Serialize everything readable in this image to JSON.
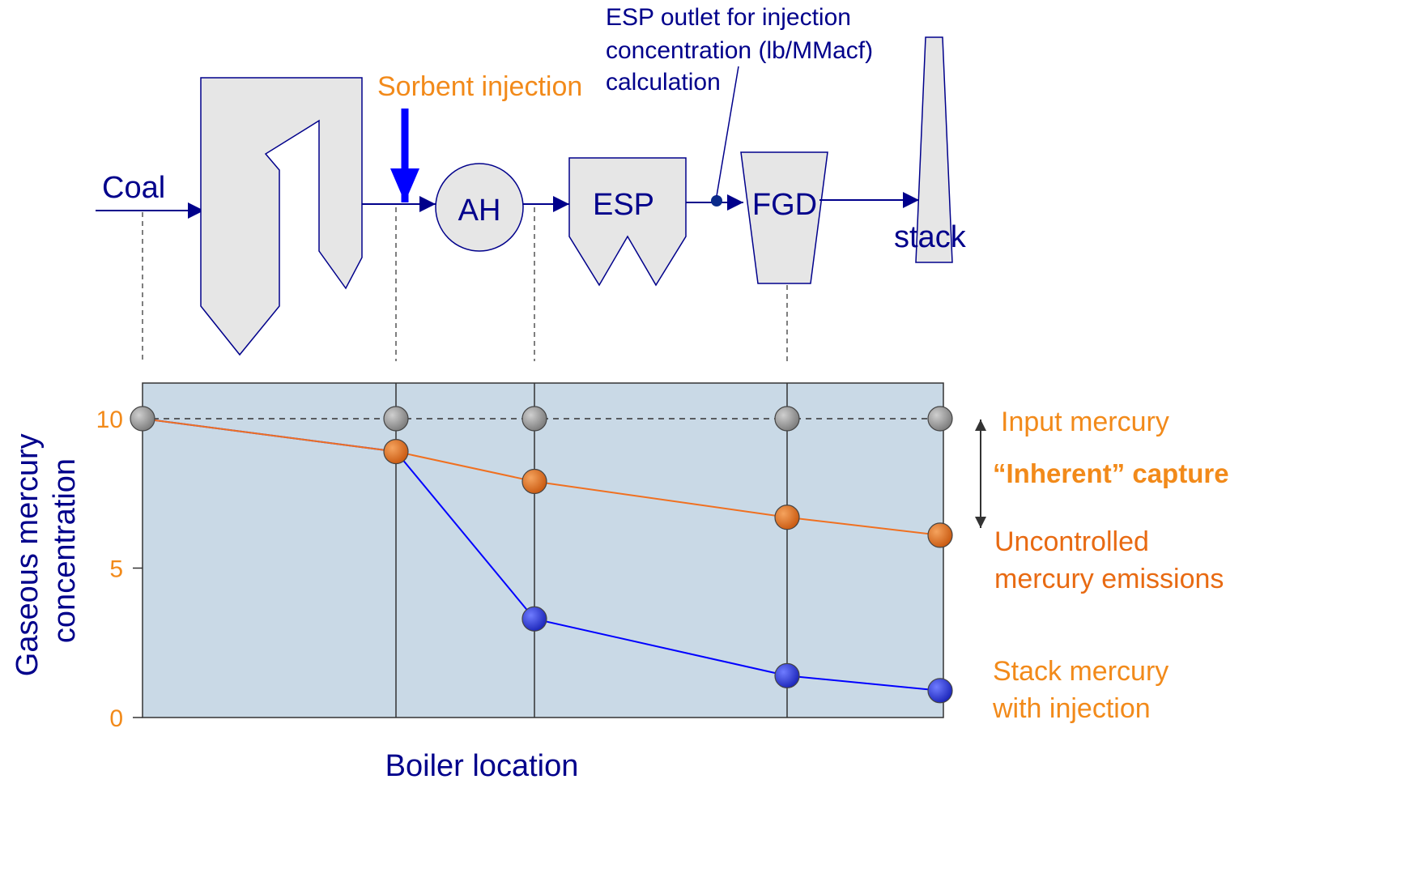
{
  "colors": {
    "navy": "#00008b",
    "blue": "#0000ff",
    "orange": "#f28a1a",
    "orange_dark": "#e86a12",
    "unit_fill": "#e6e6e6",
    "plot_bg": "#c9d9e6",
    "gray_marker": "#8c8c8c",
    "orange_marker": "#e07020",
    "blue_marker": "#2d3ddb"
  },
  "labels": {
    "coal": "Coal",
    "sorbent_injection": "Sorbent injection",
    "ah": "AH",
    "esp": "ESP",
    "fgd": "FGD",
    "stack": "stack",
    "esp_outlet_note": [
      "ESP outlet for injection",
      "concentration (lb/MMacf)",
      "calculation"
    ]
  },
  "legend": {
    "input_mercury": "Input mercury",
    "inherent_capture": "“Inherent” capture",
    "uncontrolled": [
      "Uncontrolled",
      "mercury emissions"
    ],
    "stack_mercury": [
      "Stack mercury",
      "with injection"
    ]
  },
  "chart_data": {
    "type": "line",
    "ylabel": [
      "Gaseous mercury",
      "concentration"
    ],
    "xlabel": "Boiler location",
    "yticks": [
      "0",
      "5",
      "10"
    ],
    "ylim": [
      0,
      10
    ],
    "x": [
      0,
      1,
      2,
      3,
      4
    ],
    "series": [
      {
        "name": "Input mercury",
        "values": [
          10,
          10,
          10,
          10,
          10
        ]
      },
      {
        "name": "Uncontrolled mercury emissions",
        "values": [
          10,
          8.9,
          7.9,
          6.7,
          6.1
        ]
      },
      {
        "name": "Stack mercury with injection",
        "values": [
          10,
          8.9,
          3.3,
          1.4,
          0.9
        ]
      }
    ]
  }
}
